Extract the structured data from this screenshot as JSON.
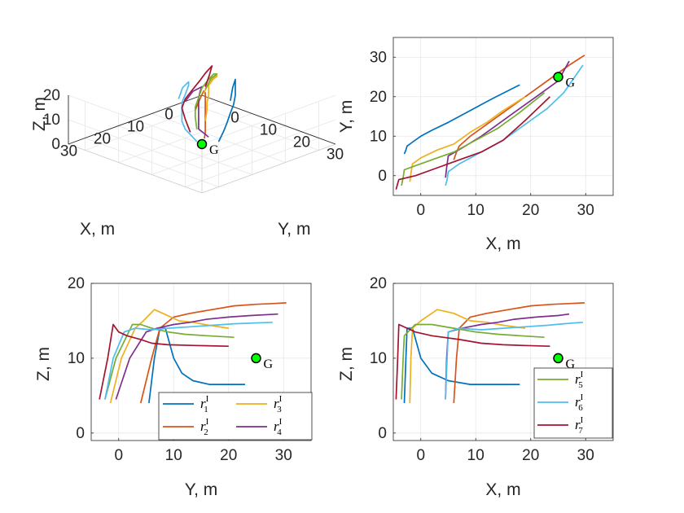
{
  "colors": {
    "r1": "#0072BD",
    "r2": "#D95319",
    "r3": "#EDB120",
    "r4": "#7E2F8E",
    "r5": "#77AC30",
    "r6": "#4DBEEE",
    "r7": "#A2142F",
    "goal": "#00ff00",
    "grid": "#e6e6e6",
    "axis": "#262626"
  },
  "goal": {
    "label": "G",
    "x": 25,
    "y": 25,
    "z": 10
  },
  "legend_series": {
    "r1": {
      "base": "r",
      "sup": "I",
      "sub": "1"
    },
    "r2": {
      "base": "r",
      "sup": "I",
      "sub": "2"
    },
    "r3": {
      "base": "r",
      "sup": "I",
      "sub": "3"
    },
    "r4": {
      "base": "r",
      "sup": "I",
      "sub": "4"
    },
    "r5": {
      "base": "r",
      "sup": "I",
      "sub": "5"
    },
    "r6": {
      "base": "r",
      "sup": "I",
      "sub": "6"
    },
    "r7": {
      "base": "r",
      "sup": "I",
      "sub": "7"
    }
  },
  "chart_data": [
    {
      "id": "p3d",
      "type": "line",
      "view": "3d",
      "xlabel": "X, m",
      "ylabel": "Y, m",
      "zlabel": "Z, m",
      "xticks": [
        0,
        10,
        20,
        30
      ],
      "yticks": [
        0,
        10,
        20,
        30
      ],
      "zticks": [
        0,
        10,
        20
      ],
      "xlim": [
        -5,
        35
      ],
      "ylim": [
        -5,
        35
      ],
      "zlim": [
        0,
        20
      ],
      "series_ids": [
        "r1",
        "r2",
        "r3",
        "r4",
        "r5",
        "r6",
        "r7"
      ],
      "legend": false,
      "grid": true
    },
    {
      "id": "pxy",
      "type": "line",
      "xlabel": "X, m",
      "ylabel": "Y, m",
      "xticks": [
        0,
        10,
        20,
        30
      ],
      "yticks": [
        0,
        10,
        20,
        30
      ],
      "xlim": [
        -5,
        35
      ],
      "ylim": [
        -5,
        35
      ],
      "series_ids": [
        "r1",
        "r2",
        "r3",
        "r4",
        "r5",
        "r6",
        "r7"
      ],
      "legend": false,
      "grid": true
    },
    {
      "id": "pyz",
      "type": "line",
      "xlabel": "Y, m",
      "ylabel": "Z, m",
      "xticks": [
        0,
        10,
        20,
        30
      ],
      "yticks": [
        0,
        10,
        20
      ],
      "xlim": [
        -5,
        35
      ],
      "ylim": [
        -1,
        20
      ],
      "series_ids": [
        "r1",
        "r2",
        "r3",
        "r4",
        "r5",
        "r6",
        "r7"
      ],
      "legend": true,
      "legend_position": "bottom-right",
      "legend_columns": 2,
      "legend_items": [
        "r1",
        "r2",
        "r3",
        "r4"
      ],
      "grid": true
    },
    {
      "id": "pxz",
      "type": "line",
      "xlabel": "X, m",
      "ylabel": "Z, m",
      "xticks": [
        0,
        10,
        20,
        30
      ],
      "yticks": [
        0,
        10,
        20
      ],
      "xlim": [
        -5,
        35
      ],
      "ylim": [
        -1,
        20
      ],
      "series_ids": [
        "r1",
        "r2",
        "r3",
        "r4",
        "r5",
        "r6",
        "r7"
      ],
      "legend": true,
      "legend_position": "bottom-right",
      "legend_columns": 1,
      "legend_items": [
        "r5",
        "r6",
        "r7"
      ],
      "grid": true
    }
  ],
  "series": {
    "r1": [
      [
        -3,
        5.5,
        4
      ],
      [
        -2.7,
        6.5,
        10
      ],
      [
        -2.5,
        7.5,
        14
      ],
      [
        -1.5,
        8.5,
        14
      ],
      [
        0,
        10,
        10
      ],
      [
        2,
        11.5,
        8
      ],
      [
        5,
        13.5,
        7
      ],
      [
        9,
        16.5,
        6.5
      ],
      [
        13,
        19.5,
        6.5
      ],
      [
        18,
        23,
        6.5
      ]
    ],
    "r2": [
      [
        6,
        4,
        4
      ],
      [
        6.5,
        6,
        10
      ],
      [
        7,
        7.5,
        14
      ],
      [
        9,
        10,
        15.5
      ],
      [
        12,
        13,
        16
      ],
      [
        16,
        17,
        16.5
      ],
      [
        20,
        21,
        17
      ],
      [
        24,
        25,
        17.2
      ],
      [
        27,
        28,
        17.3
      ],
      [
        29.8,
        30.5,
        17.4
      ]
    ],
    "r3": [
      [
        -2,
        -1.5,
        4
      ],
      [
        -1.8,
        0.5,
        10
      ],
      [
        -1.5,
        3,
        14
      ],
      [
        0,
        4.5,
        15
      ],
      [
        3,
        6.5,
        16.5
      ],
      [
        6,
        8,
        16
      ],
      [
        9,
        11,
        15
      ],
      [
        12,
        13.5,
        14.8
      ],
      [
        15,
        16.5,
        14.4
      ],
      [
        19,
        20,
        14
      ]
    ],
    "r4": [
      [
        4.5,
        -0.5,
        4.5
      ],
      [
        4.7,
        2,
        10
      ],
      [
        5,
        5,
        13.5
      ],
      [
        7.5,
        7,
        14
      ],
      [
        11,
        10,
        14.5
      ],
      [
        14,
        13,
        14.8
      ],
      [
        17,
        16,
        15.2
      ],
      [
        21,
        20,
        15.5
      ],
      [
        25,
        24,
        15.7
      ],
      [
        27,
        29,
        15.9
      ]
    ],
    "r5": [
      [
        -3.5,
        -2.5,
        4.5
      ],
      [
        -3.2,
        -0.5,
        10
      ],
      [
        -3,
        1.5,
        13
      ],
      [
        -1,
        2.5,
        14.5
      ],
      [
        2,
        4,
        14.5
      ],
      [
        6,
        6,
        14
      ],
      [
        10,
        9,
        13.5
      ],
      [
        14,
        12,
        13.2
      ],
      [
        18,
        16,
        13
      ],
      [
        22.5,
        21,
        12.8
      ]
    ],
    "r6": [
      [
        4.5,
        -2.5,
        4.5
      ],
      [
        4.8,
        -1,
        10
      ],
      [
        5,
        1,
        13.5
      ],
      [
        7,
        3,
        14
      ],
      [
        11,
        6,
        13.8
      ],
      [
        15,
        9,
        14
      ],
      [
        19,
        13,
        14.2
      ],
      [
        23,
        17,
        14.4
      ],
      [
        26,
        21,
        14.6
      ],
      [
        29.5,
        28,
        14.8
      ]
    ],
    "r7": [
      [
        -4.5,
        -3.5,
        4.5
      ],
      [
        -4.2,
        -2,
        10
      ],
      [
        -4,
        -1,
        14.5
      ],
      [
        -1,
        0,
        13.5
      ],
      [
        2,
        1.5,
        13
      ],
      [
        7,
        4,
        12.5
      ],
      [
        11,
        6,
        12
      ],
      [
        15,
        9,
        11.8
      ],
      [
        19,
        14,
        11.7
      ],
      [
        23.5,
        20,
        11.6
      ]
    ]
  }
}
